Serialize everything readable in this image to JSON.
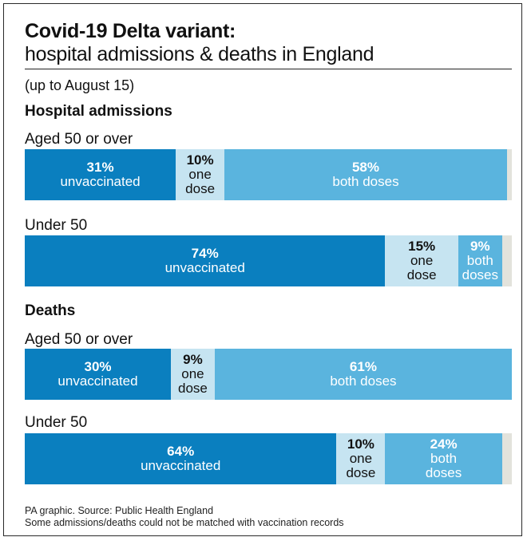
{
  "title": "Covid-19 Delta variant:",
  "subtitle": "hospital admissions & deaths in England",
  "note": "(up to August 15)",
  "sections": [
    {
      "label": "Hospital admissions",
      "groups": [
        {
          "label": "Aged 50 or over",
          "segments": [
            {
              "pct": "31%",
              "label_lines": [
                "unvaccinated"
              ],
              "kind": "unvaccinated",
              "value": 31
            },
            {
              "pct": "10%",
              "label_lines": [
                "one",
                "dose"
              ],
              "kind": "one_dose",
              "value": 10
            },
            {
              "pct": "58%",
              "label_lines": [
                "both doses"
              ],
              "kind": "both_doses",
              "value": 58
            }
          ]
        },
        {
          "label": "Under 50",
          "segments": [
            {
              "pct": "74%",
              "label_lines": [
                "unvaccinated"
              ],
              "kind": "unvaccinated",
              "value": 74
            },
            {
              "pct": "15%",
              "label_lines": [
                "one",
                "dose"
              ],
              "kind": "one_dose",
              "value": 15
            },
            {
              "pct": "9%",
              "label_lines": [
                "both",
                "doses"
              ],
              "kind": "both_doses",
              "value": 9
            }
          ]
        }
      ]
    },
    {
      "label": "Deaths",
      "groups": [
        {
          "label": "Aged 50 or over",
          "segments": [
            {
              "pct": "30%",
              "label_lines": [
                "unvaccinated"
              ],
              "kind": "unvaccinated",
              "value": 30
            },
            {
              "pct": "9%",
              "label_lines": [
                "one",
                "dose"
              ],
              "kind": "one_dose",
              "value": 9
            },
            {
              "pct": "61%",
              "label_lines": [
                "both doses"
              ],
              "kind": "both_doses",
              "value": 61
            }
          ]
        },
        {
          "label": "Under 50",
          "segments": [
            {
              "pct": "64%",
              "label_lines": [
                "unvaccinated"
              ],
              "kind": "unvaccinated",
              "value": 64
            },
            {
              "pct": "10%",
              "label_lines": [
                "one",
                "dose"
              ],
              "kind": "one_dose",
              "value": 10
            },
            {
              "pct": "24%",
              "label_lines": [
                "both",
                "doses"
              ],
              "kind": "both_doses",
              "value": 24
            }
          ]
        }
      ]
    }
  ],
  "footer": {
    "line1": "PA graphic. Source: Public Health England",
    "line2": "Some admissions/deaths could not be matched with vaccination records"
  },
  "colors": {
    "unvaccinated": "#0a7fbf",
    "one_dose": "#c6e4f1",
    "both_doses": "#5ab4de",
    "unmatched": "#e3e3dc"
  },
  "chart_data": {
    "type": "bar",
    "stacked": true,
    "orientation": "horizontal",
    "title": "Covid-19 Delta variant:",
    "subtitle": "hospital admissions & deaths in England",
    "categories": [
      "Hospital admissions - Aged 50 or over",
      "Hospital admissions - Under 50",
      "Deaths - Aged 50 or over",
      "Deaths - Under 50"
    ],
    "series": [
      {
        "name": "unvaccinated",
        "values": [
          31,
          74,
          30,
          64
        ]
      },
      {
        "name": "one dose",
        "values": [
          10,
          15,
          9,
          10
        ]
      },
      {
        "name": "both doses",
        "values": [
          58,
          9,
          61,
          24
        ]
      }
    ],
    "xlim": [
      0,
      100
    ],
    "unit": "%"
  }
}
